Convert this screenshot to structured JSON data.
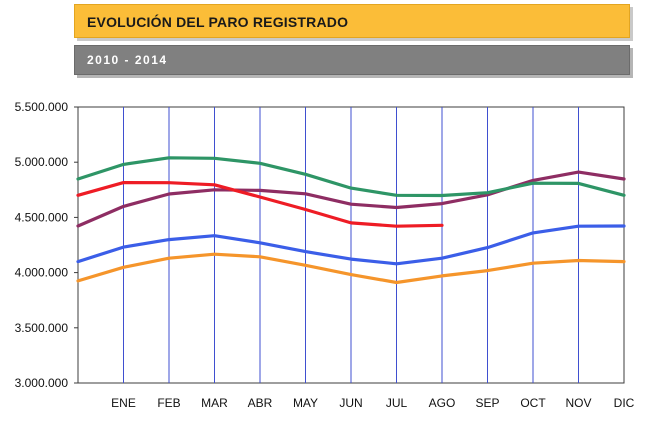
{
  "header": {
    "title": "EVOLUCIÓN DEL PARO REGISTRADO",
    "subtitle": "2010 - 2014",
    "title_bg": "#fbbd38",
    "subtitle_bg": "#808080"
  },
  "chart_data": {
    "type": "line",
    "title": "EVOLUCIÓN DEL PARO REGISTRADO",
    "subtitle": "2010 - 2014",
    "xlabel": "",
    "ylabel": "",
    "categories": [
      "",
      "ENE",
      "FEB",
      "MAR",
      "ABR",
      "MAY",
      "JUN",
      "JUL",
      "AGO",
      "SEP",
      "OCT",
      "NOV",
      "DIC"
    ],
    "y_ticks": [
      "3.000.000",
      "3.500.000",
      "4.000.000",
      "4.500.000",
      "5.000.000",
      "5.500.000"
    ],
    "ylim": [
      3000000,
      5500000
    ],
    "grid": "vertical",
    "legend": "none",
    "series": [
      {
        "color": "#f5952b",
        "values": [
          3925000,
          4048000,
          4130000,
          4167000,
          4143000,
          4066000,
          3982000,
          3910000,
          3970000,
          4018000,
          4085000,
          4110000,
          4100000
        ]
      },
      {
        "color": "#3b5ee8",
        "values": [
          4100000,
          4231000,
          4299000,
          4334000,
          4270000,
          4190000,
          4122000,
          4080000,
          4130000,
          4226000,
          4360000,
          4420000,
          4422000
        ]
      },
      {
        "color": "#8e2d63",
        "values": [
          4422000,
          4600000,
          4712000,
          4750000,
          4745000,
          4714000,
          4620000,
          4590000,
          4625000,
          4705000,
          4835000,
          4910000,
          4848000
        ]
      },
      {
        "color": "#2e9566",
        "values": [
          4848000,
          4980000,
          5040000,
          5035000,
          4990000,
          4890000,
          4765000,
          4700000,
          4698000,
          4724000,
          4810000,
          4808000,
          4700000
        ]
      },
      {
        "color": "#ee1c25",
        "values": [
          4700000,
          4815000,
          4814000,
          4795000,
          4685000,
          4572000,
          4450000,
          4420000,
          4428000,
          null,
          null,
          null,
          null
        ]
      }
    ]
  }
}
